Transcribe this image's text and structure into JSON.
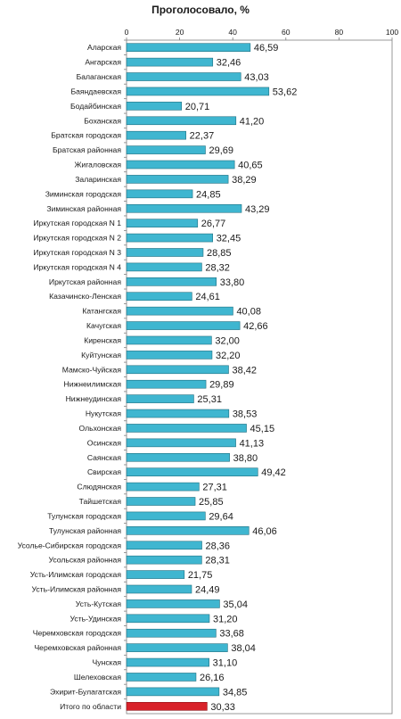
{
  "chart_data": {
    "type": "bar",
    "orientation": "horizontal",
    "title": "Проголосовало, %",
    "xlim": [
      0,
      100
    ],
    "xticks": [
      "0",
      "20",
      "40",
      "60",
      "80",
      "100"
    ],
    "grid": false,
    "legend": "none",
    "categories": [
      "Аларская",
      "Ангарская",
      "Балаганская",
      "Баяндаевская",
      "Бодайбинская",
      "Боханская",
      "Братская городская",
      "Братская районная",
      "Жигаловская",
      "Заларинская",
      "Зиминская городская",
      "Зиминская районная",
      "Иркутская городская N 1",
      "Иркутская городская N 2",
      "Иркутская городская N 3",
      "Иркутская городская N 4",
      "Иркутская районная",
      "Казачинско-Ленская",
      "Катангская",
      "Качугская",
      "Киренская",
      "Куйтунская",
      "Мамско-Чуйская",
      "Нижнеилимская",
      "Нижнеудинская",
      "Нукутская",
      "Ольхонская",
      "Осинская",
      "Саянская",
      "Свирская",
      "Слюдянская",
      "Тайшетская",
      "Тулунская городская",
      "Тулунская районная",
      "Усолье-Сибирская городская",
      "Усольская районная",
      "Усть-Илимская городская",
      "Усть-Илимская районная",
      "Усть-Кутская",
      "Усть-Удинская",
      "Черемховская городская",
      "Черемховская районная",
      "Чунская",
      "Шелеховская",
      "Эхирит-Булагатская",
      "Итого по области"
    ],
    "values": [
      46.59,
      32.46,
      43.03,
      53.62,
      20.71,
      41.2,
      22.37,
      29.69,
      40.65,
      38.29,
      24.85,
      43.29,
      26.77,
      32.45,
      28.85,
      28.32,
      33.8,
      24.61,
      40.08,
      42.66,
      32.0,
      32.2,
      38.42,
      29.89,
      25.31,
      38.53,
      45.15,
      41.13,
      38.8,
      49.42,
      27.31,
      25.85,
      29.64,
      46.06,
      28.36,
      28.31,
      21.75,
      24.49,
      35.04,
      31.2,
      33.68,
      38.04,
      31.1,
      26.16,
      34.85,
      30.33
    ],
    "value_labels": [
      "46,59",
      "32,46",
      "43,03",
      "53,62",
      "20,71",
      "41,20",
      "22,37",
      "29,69",
      "40,65",
      "38,29",
      "24,85",
      "43,29",
      "26,77",
      "32,45",
      "28,85",
      "28,32",
      "33,80",
      "24,61",
      "40,08",
      "42,66",
      "32,00",
      "32,20",
      "38,42",
      "29,89",
      "25,31",
      "38,53",
      "45,15",
      "41,13",
      "38,80",
      "49,42",
      "27,31",
      "25,85",
      "29,64",
      "46,06",
      "28,36",
      "28,31",
      "21,75",
      "24,49",
      "35,04",
      "31,20",
      "33,68",
      "38,04",
      "31,10",
      "26,16",
      "34,85",
      "30,33"
    ],
    "colors": {
      "bar": "#3fb6d0",
      "bar_stroke": "#1f6f80",
      "highlight": "#d8222a",
      "highlight_stroke": "#8a1015",
      "axis": "#7f7f7f"
    },
    "highlight_index": 45
  }
}
